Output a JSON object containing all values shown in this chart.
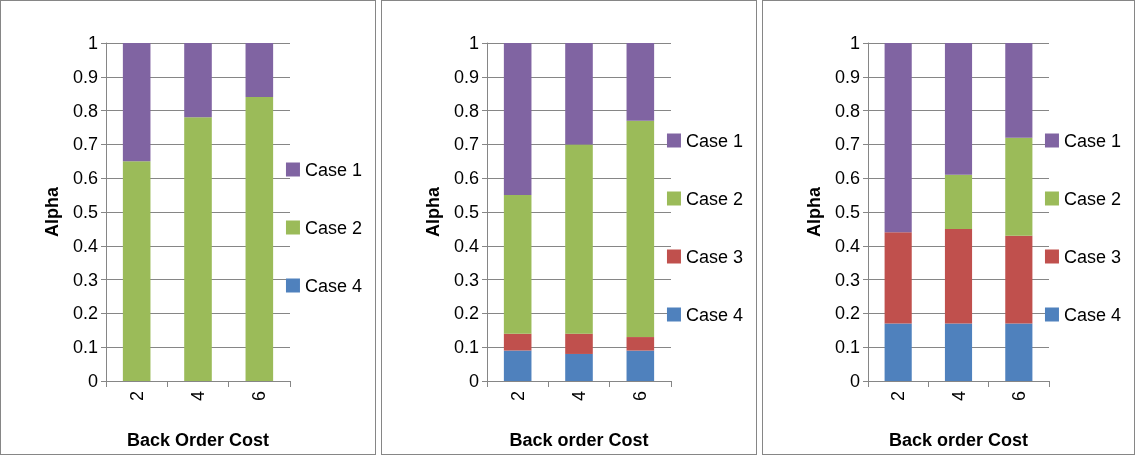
{
  "chart_data": [
    {
      "type": "bar",
      "stacked": true,
      "categories": [
        "2",
        "4",
        "6"
      ],
      "xlabel": "Back Order Cost",
      "ylabel": "Alpha",
      "ylim": [
        0,
        1
      ],
      "yticks": [
        0,
        0.1,
        0.2,
        0.3,
        0.4,
        0.5,
        0.6,
        0.7,
        0.8,
        0.9,
        1
      ],
      "grid": "y",
      "legend": "right",
      "series": [
        {
          "name": "Case 4",
          "color": "#4f81bd",
          "values": [
            0,
            0,
            0
          ]
        },
        {
          "name": "Case 2",
          "color": "#9bbb59",
          "values": [
            0.65,
            0.78,
            0.84
          ]
        },
        {
          "name": "Case 1",
          "color": "#8064a2",
          "values": [
            0.35,
            0.22,
            0.16
          ]
        }
      ]
    },
    {
      "type": "bar",
      "stacked": true,
      "categories": [
        "2",
        "4",
        "6"
      ],
      "xlabel": "Back order Cost",
      "ylabel": "Alpha",
      "ylim": [
        0,
        1
      ],
      "yticks": [
        0,
        0.1,
        0.2,
        0.3,
        0.4,
        0.5,
        0.6,
        0.7,
        0.8,
        0.9,
        1
      ],
      "grid": "y",
      "legend": "right",
      "series": [
        {
          "name": "Case 4",
          "color": "#4f81bd",
          "values": [
            0.09,
            0.08,
            0.09
          ]
        },
        {
          "name": "Case 3",
          "color": "#c0504d",
          "values": [
            0.05,
            0.06,
            0.04
          ]
        },
        {
          "name": "Case 2",
          "color": "#9bbb59",
          "values": [
            0.41,
            0.56,
            0.64
          ]
        },
        {
          "name": "Case 1",
          "color": "#8064a2",
          "values": [
            0.45,
            0.3,
            0.23
          ]
        }
      ]
    },
    {
      "type": "bar",
      "stacked": true,
      "categories": [
        "2",
        "4",
        "6"
      ],
      "xlabel": "Back order Cost",
      "ylabel": "Alpha",
      "ylim": [
        0,
        1
      ],
      "yticks": [
        0,
        0.1,
        0.2,
        0.3,
        0.4,
        0.5,
        0.6,
        0.7,
        0.8,
        0.9,
        1
      ],
      "grid": "y",
      "legend": "right",
      "series": [
        {
          "name": "Case 4",
          "color": "#4f81bd",
          "values": [
            0.17,
            0.17,
            0.17
          ]
        },
        {
          "name": "Case 3",
          "color": "#c0504d",
          "values": [
            0.27,
            0.28,
            0.26
          ]
        },
        {
          "name": "Case 2",
          "color": "#9bbb59",
          "values": [
            0,
            0.16,
            0.29
          ]
        },
        {
          "name": "Case 1",
          "color": "#8064a2",
          "values": [
            0.56,
            0.39,
            0.28
          ]
        }
      ]
    }
  ]
}
